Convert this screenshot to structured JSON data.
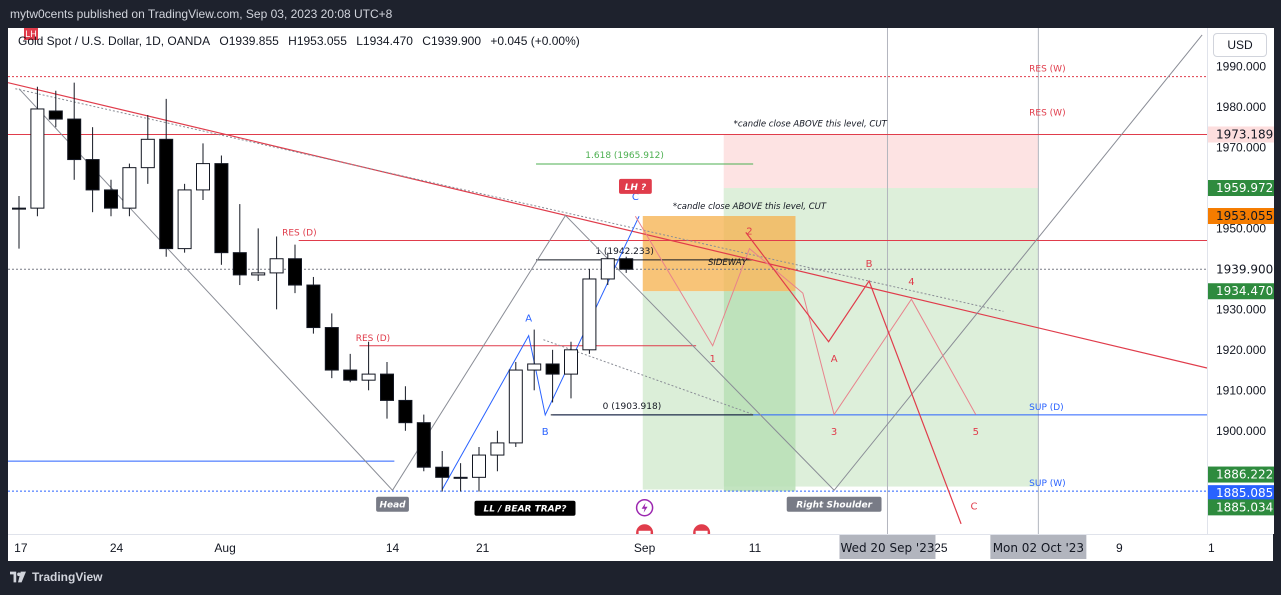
{
  "header": {
    "published": "mytw0cents published on TradingView.com, Sep 03, 2023 20:08 UTC+8"
  },
  "legend": {
    "symbol": "Gold Spot / U.S. Dollar, 1D, OANDA",
    "open": "O1939.855",
    "high": "H1953.055",
    "low": "L1934.470",
    "close": "C1939.900",
    "change": "+0.045 (+0.00%)",
    "badge": "LH"
  },
  "currency_button": "USD",
  "footer": {
    "brand": "TradingView"
  },
  "colors": {
    "up": "#ffffff",
    "down": "#000000",
    "resistance": "#e03c4b",
    "support": "#2962ff",
    "pattern_blue": "#2962ff",
    "zone_red": "#fddede",
    "zone_green": "#d7ecd4",
    "zone_orange": "#f6b04b"
  },
  "chart_data": {
    "type": "candlestick",
    "yticks": [
      1890,
      1900,
      1910,
      1920,
      1930,
      1940,
      1950,
      1960,
      1970,
      1980,
      1990
    ],
    "ytick_labels": [
      "1890.000",
      "1900.000",
      "1910.000",
      "1920.000",
      "1930.000",
      "1940.000",
      "1950.000",
      "1960.000",
      "1970.000",
      "1980.000",
      "1990.000"
    ],
    "ylim": [
      1874.5,
      1999.5
    ],
    "xtick_labels": [
      "17",
      "24",
      "Aug",
      "14",
      "21",
      "Sep",
      "11",
      "25",
      "9",
      "1"
    ],
    "price_labels": [
      {
        "text": "1973.189",
        "value": 1973.189,
        "bg": "#fddede",
        "fg": "#131722"
      },
      {
        "text": "1959.972",
        "value": 1959.972,
        "bg": "#2e8b3e",
        "fg": "#ffffff"
      },
      {
        "text": "1953.055",
        "value": 1953.055,
        "bg": "#f57c00",
        "fg": "#131722"
      },
      {
        "text": "1939.900",
        "value": 1939.9,
        "bg": "#ffffff",
        "fg": "#131722"
      },
      {
        "text": "1934.470",
        "value": 1934.47,
        "bg": "#2e8b3e",
        "fg": "#ffffff"
      },
      {
        "text": "1886.222",
        "value": 1886.222,
        "bg": "#2e8b3e",
        "fg": "#ffffff"
      },
      {
        "text": "1885.085",
        "value": 1885.085,
        "bg": "#2962ff",
        "fg": "#ffffff"
      },
      {
        "text": "1885.034",
        "value": 1885.034,
        "bg": "#2e8b3e",
        "fg": "#ffffff"
      }
    ],
    "time_labels": [
      {
        "text": "Wed 20 Sep '23"
      },
      {
        "text": "Mon 02 Oct '23"
      }
    ],
    "candles": [
      {
        "o": 1955.0,
        "h": 1958.0,
        "l": 1945.0,
        "c": 1955.0
      },
      {
        "o": 1955.0,
        "h": 1985.0,
        "l": 1953.0,
        "c": 1979.5
      },
      {
        "o": 1979.0,
        "h": 1984.0,
        "l": 1975.0,
        "c": 1977.0
      },
      {
        "o": 1977.0,
        "h": 1986.0,
        "l": 1962.0,
        "c": 1967.0
      },
      {
        "o": 1967.0,
        "h": 1975.0,
        "l": 1954.0,
        "c": 1959.5
      },
      {
        "o": 1959.5,
        "h": 1962.0,
        "l": 1953.0,
        "c": 1955.0
      },
      {
        "o": 1955.0,
        "h": 1966.0,
        "l": 1953.0,
        "c": 1965.0
      },
      {
        "o": 1965.0,
        "h": 1978.0,
        "l": 1961.0,
        "c": 1972.0
      },
      {
        "o": 1972.0,
        "h": 1982.0,
        "l": 1943.0,
        "c": 1945.0
      },
      {
        "o": 1945.0,
        "h": 1961.0,
        "l": 1944.0,
        "c": 1959.5
      },
      {
        "o": 1959.5,
        "h": 1971.0,
        "l": 1957.0,
        "c": 1966.0
      },
      {
        "o": 1966.0,
        "h": 1968.0,
        "l": 1941.0,
        "c": 1944.0
      },
      {
        "o": 1944.0,
        "h": 1956.0,
        "l": 1936.0,
        "c": 1938.5
      },
      {
        "o": 1938.5,
        "h": 1950.0,
        "l": 1937.0,
        "c": 1939.0
      },
      {
        "o": 1939.0,
        "h": 1948.0,
        "l": 1930.0,
        "c": 1942.5
      },
      {
        "o": 1942.5,
        "h": 1946.0,
        "l": 1934.0,
        "c": 1936.0
      },
      {
        "o": 1936.0,
        "h": 1938.0,
        "l": 1924.0,
        "c": 1925.5
      },
      {
        "o": 1925.5,
        "h": 1929.0,
        "l": 1913.0,
        "c": 1915.0
      },
      {
        "o": 1915.0,
        "h": 1919.0,
        "l": 1912.0,
        "c": 1912.5
      },
      {
        "o": 1912.5,
        "h": 1922.0,
        "l": 1910.0,
        "c": 1914.0
      },
      {
        "o": 1914.0,
        "h": 1917.0,
        "l": 1903.0,
        "c": 1907.5
      },
      {
        "o": 1907.5,
        "h": 1911.0,
        "l": 1900.0,
        "c": 1902.0
      },
      {
        "o": 1902.0,
        "h": 1904.0,
        "l": 1890.0,
        "c": 1891.0
      },
      {
        "o": 1891.0,
        "h": 1895.0,
        "l": 1885.0,
        "c": 1888.5
      },
      {
        "o": 1888.5,
        "h": 1892.0,
        "l": 1885.0,
        "c": 1888.5
      },
      {
        "o": 1888.5,
        "h": 1896.0,
        "l": 1885.0,
        "c": 1894.0
      },
      {
        "o": 1894.0,
        "h": 1900.0,
        "l": 1890.0,
        "c": 1897.0
      },
      {
        "o": 1897.0,
        "h": 1917.0,
        "l": 1896.0,
        "c": 1915.0
      },
      {
        "o": 1915.0,
        "h": 1925.0,
        "l": 1910.0,
        "c": 1916.5
      },
      {
        "o": 1916.5,
        "h": 1920.0,
        "l": 1907.0,
        "c": 1914.0
      },
      {
        "o": 1914.0,
        "h": 1922.0,
        "l": 1908.0,
        "c": 1920.0
      },
      {
        "o": 1920.0,
        "h": 1940.0,
        "l": 1919.0,
        "c": 1937.5
      },
      {
        "o": 1937.5,
        "h": 1944.0,
        "l": 1936.0,
        "c": 1942.5
      },
      {
        "o": 1942.5,
        "h": 1943.0,
        "l": 1939.0,
        "c": 1939.9
      }
    ],
    "horizontal_lines": [
      {
        "label": "RES (W)",
        "value": 1987.5,
        "color": "#e03c4b",
        "style": "dotted",
        "extended": true
      },
      {
        "label": "RES (W)",
        "value": 1973.189,
        "color": "#e03c4b",
        "style": "solid",
        "extended": true
      },
      {
        "label": "RES (D)",
        "value": 1947.0,
        "color": "#e03c4b",
        "style": "solid",
        "extended": true
      },
      {
        "label": "RES (D)",
        "value": 1921.0,
        "color": "#e03c4b",
        "style": "solid",
        "extended": false
      },
      {
        "label": "SUP (D)",
        "value": 1903.918,
        "color": "#2962ff",
        "style": "solid",
        "extended": true
      },
      {
        "label": "SUP (W)",
        "value": 1885.085,
        "color": "#2962ff",
        "style": "dotted",
        "extended": true
      },
      {
        "label": "",
        "value": 1939.9,
        "color": "#787b86",
        "style": "dotted",
        "extended": true
      }
    ],
    "fibonacci": [
      {
        "label": "1.618 (1965.912)",
        "value": 1965.912,
        "color": "#4caf50"
      },
      {
        "label": "1 (1942.233)",
        "value": 1942.233,
        "color": "#131722"
      },
      {
        "label": "0 (1903.918)",
        "value": 1903.918,
        "color": "#131722"
      }
    ],
    "zones": [
      {
        "name": "stop-zone-weekly",
        "top": 1973.189,
        "bottom": 1959.972,
        "color": "#fddede"
      },
      {
        "name": "target-zone-weekly",
        "top": 1959.972,
        "bottom": 1886.222,
        "color": "#d7ecd4"
      },
      {
        "name": "stop-zone-daily",
        "top": 1953.055,
        "bottom": 1934.47,
        "color": "#f6b04b"
      },
      {
        "name": "target-zone-daily",
        "top": 1934.47,
        "bottom": 1885.034,
        "color": "#b9dfb5"
      }
    ],
    "annotations": [
      {
        "text": "*candle close ABOVE this level, CUT",
        "color": "#131722"
      },
      {
        "text": "*candle close ABOVE this level, CUT",
        "color": "#131722"
      },
      {
        "text": "SIDEWAY",
        "color": "#131722"
      },
      {
        "text": "LH ?",
        "color": "#ffffff",
        "bg": "#e03c4b"
      },
      {
        "text": "Head",
        "color": "#ffffff",
        "bg": "#787b86"
      },
      {
        "text": "Right Shoulder",
        "color": "#ffffff",
        "bg": "#787b86"
      },
      {
        "text": "LL / BEAR TRAP?",
        "color": "#ffffff",
        "bg": "#000000"
      }
    ],
    "wave_labels": [
      {
        "text": "A",
        "color": "#2962ff"
      },
      {
        "text": "B",
        "color": "#2962ff"
      },
      {
        "text": "C",
        "color": "#2962ff"
      },
      {
        "text": "1",
        "color": "#e03c4b"
      },
      {
        "text": "2",
        "color": "#e03c4b"
      },
      {
        "text": "3",
        "color": "#e03c4b"
      },
      {
        "text": "4",
        "color": "#e03c4b"
      },
      {
        "text": "5",
        "color": "#e03c4b"
      },
      {
        "text": "A",
        "color": "#e03c4b"
      },
      {
        "text": "B",
        "color": "#e03c4b"
      },
      {
        "text": "C",
        "color": "#e03c4b"
      }
    ]
  }
}
